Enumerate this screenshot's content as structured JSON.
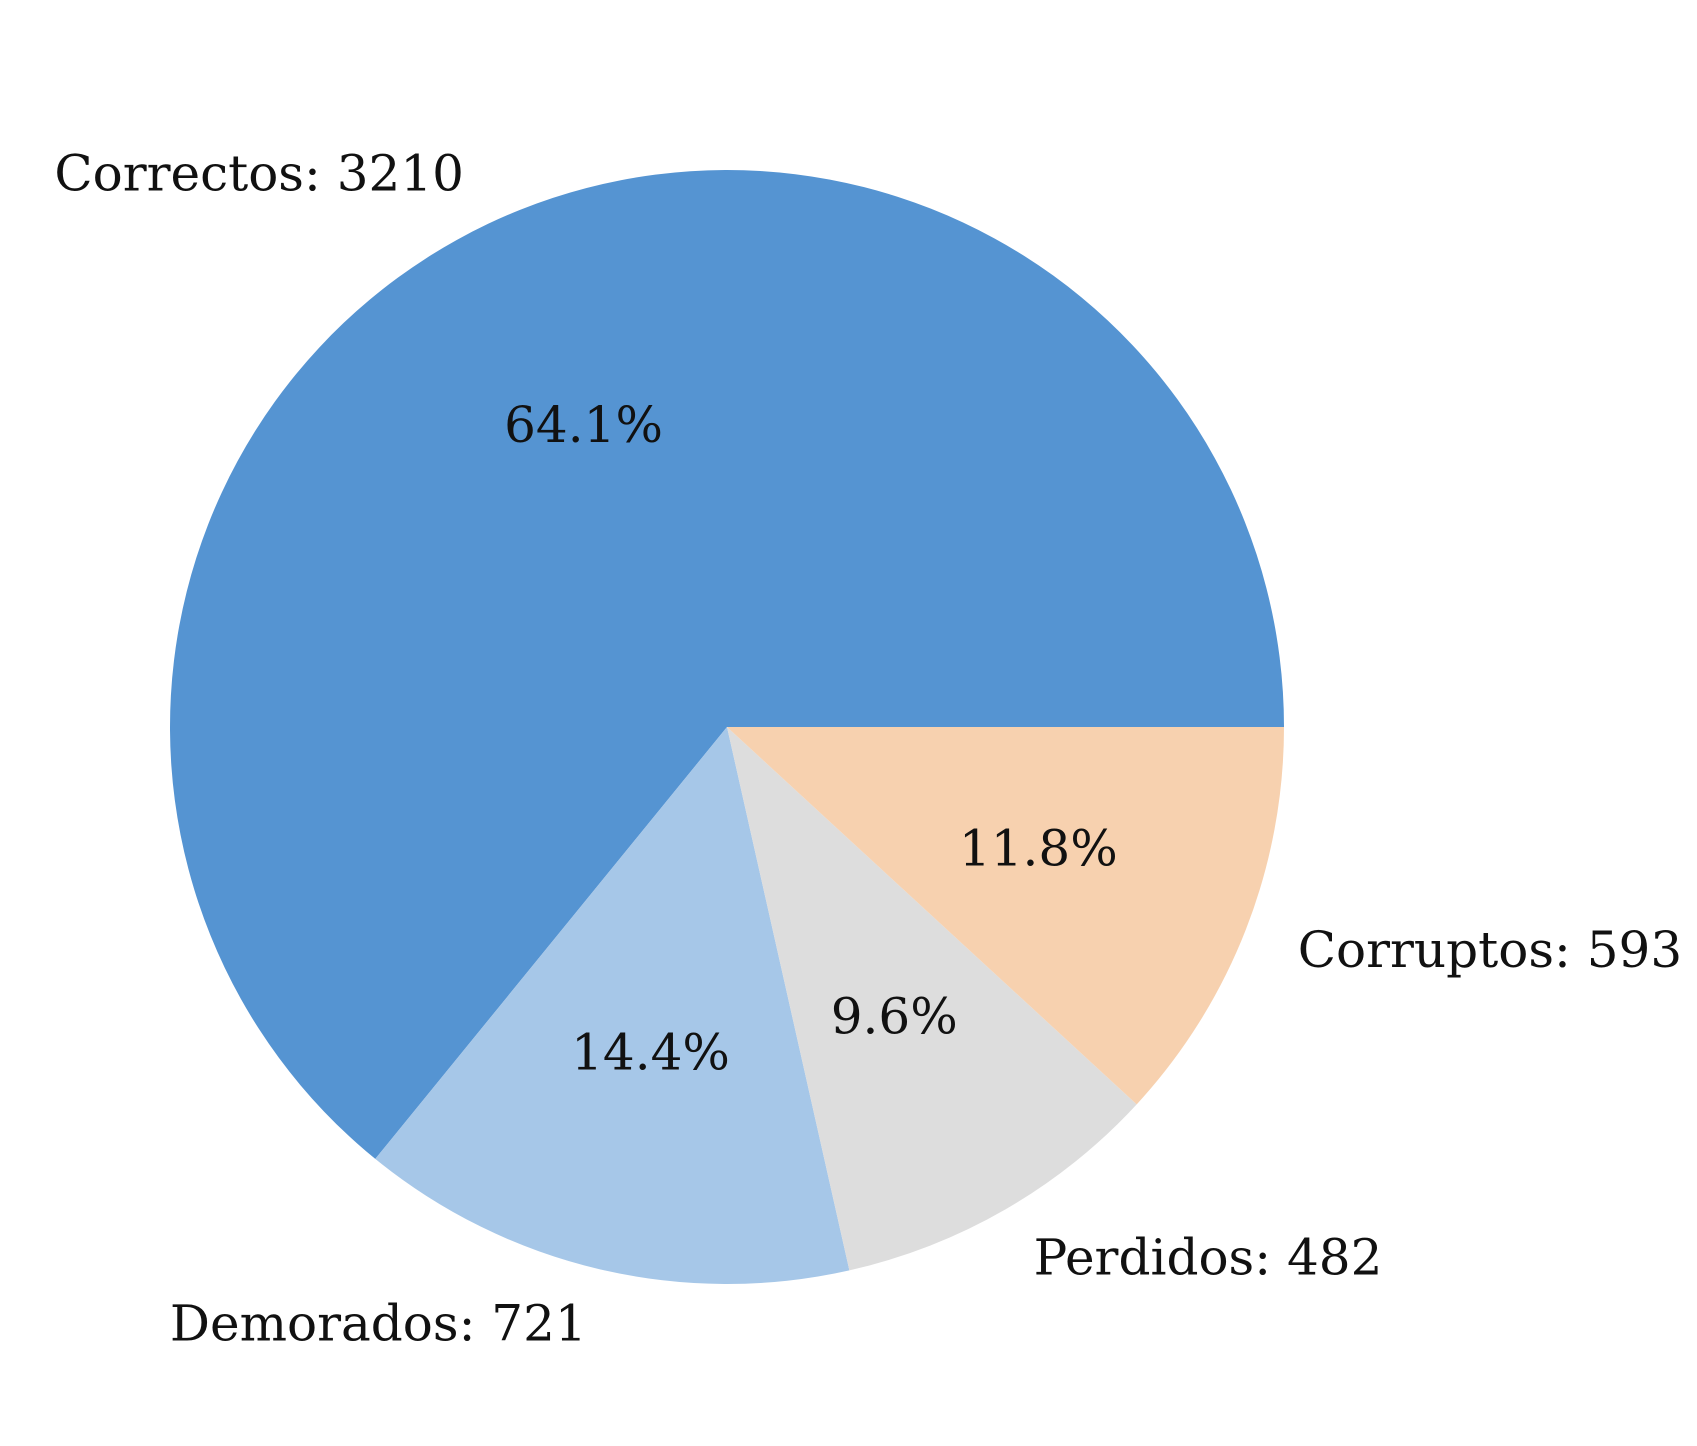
{
  "chart_data": {
    "type": "pie",
    "slices": [
      {
        "label": "Correctos: 3210",
        "name": "Correctos",
        "value": 3210,
        "pct_label": "64.1%",
        "color": "#5594D2"
      },
      {
        "label": "Demorados: 721",
        "name": "Demorados",
        "value": 721,
        "pct_label": "14.4%",
        "color": "#A6C7E8"
      },
      {
        "label": "Perdidos: 482",
        "name": "Perdidos",
        "value": 482,
        "pct_label": "9.6%",
        "color": "#DDDDDD"
      },
      {
        "label": "Corruptos: 593",
        "name": "Corruptos",
        "value": 593,
        "pct_label": "11.8%",
        "color": "#F7D1AF"
      }
    ],
    "start_angle_deg": 0,
    "direction": "counterclockwise",
    "legend": "none"
  }
}
